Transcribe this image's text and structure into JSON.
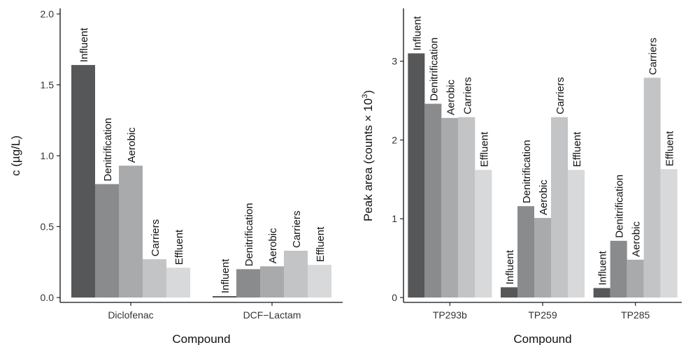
{
  "colors": {
    "Influent": "#555759",
    "Denitrification": "#8a8b8d",
    "Aerobic": "#a9aaac",
    "Carriers": "#c3c4c6",
    "Effluent": "#d8d9db"
  },
  "chart_data": [
    {
      "type": "bar",
      "xlabel": "Compound",
      "ylabel": "c (µg/L)",
      "ylim": [
        0,
        2.0
      ],
      "yticks": [
        0.0,
        0.5,
        1.0,
        1.5,
        2.0
      ],
      "ytick_labels": [
        "0.0",
        "0.5",
        "1.0",
        "1.5",
        "2.0"
      ],
      "categories": [
        "Diclofenac",
        "DCF−Lactam"
      ],
      "series": [
        {
          "name": "Influent",
          "values": [
            1.64,
            0.01
          ]
        },
        {
          "name": "Denitrification",
          "values": [
            0.8,
            0.2
          ]
        },
        {
          "name": "Aerobic",
          "values": [
            0.93,
            0.22
          ]
        },
        {
          "name": "Carriers",
          "values": [
            0.27,
            0.33
          ]
        },
        {
          "name": "Effluent",
          "values": [
            0.21,
            0.23
          ]
        }
      ],
      "grid": false,
      "legend": "none"
    },
    {
      "type": "bar",
      "xlabel": "Compound",
      "ylabel": "Peak area (counts × 10",
      "ylabel_sup": "3",
      "ylabel_end": ")",
      "ylim": [
        0,
        3.6
      ],
      "yticks": [
        0,
        1,
        2,
        3
      ],
      "ytick_labels": [
        "0",
        "1",
        "2",
        "3"
      ],
      "categories": [
        "TP293b",
        "TP259",
        "TP285"
      ],
      "series": [
        {
          "name": "Influent",
          "values": [
            3.1,
            0.13,
            0.12
          ]
        },
        {
          "name": "Denitrification",
          "values": [
            2.46,
            1.16,
            0.72
          ]
        },
        {
          "name": "Aerobic",
          "values": [
            2.28,
            1.01,
            0.48
          ]
        },
        {
          "name": "Carriers",
          "values": [
            2.29,
            2.29,
            2.79
          ]
        },
        {
          "name": "Effluent",
          "values": [
            1.62,
            1.62,
            1.63
          ]
        }
      ],
      "grid": false,
      "legend": "none"
    }
  ]
}
